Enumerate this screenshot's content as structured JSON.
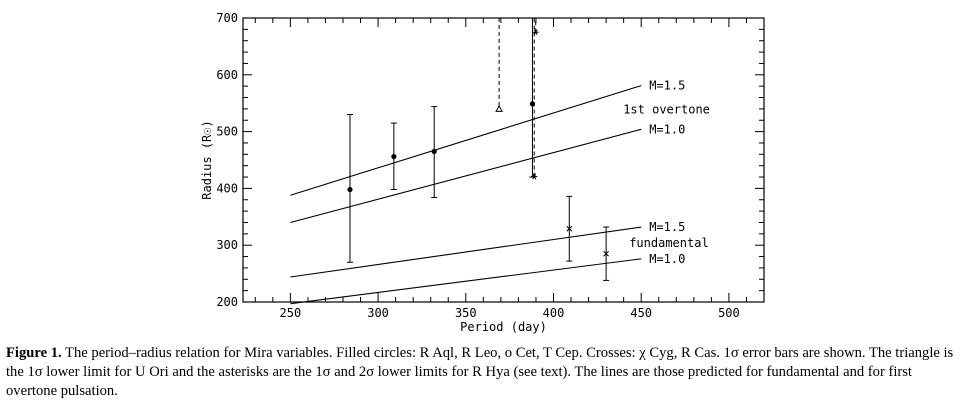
{
  "chart_data": {
    "type": "scatter",
    "xlabel": "Period (day)",
    "ylabel": "Radius (R☉)",
    "xlim": [
      223,
      520
    ],
    "ylim": [
      200,
      700
    ],
    "xticks": [
      250,
      300,
      350,
      400,
      450,
      500
    ],
    "yticks": [
      200,
      300,
      400,
      500,
      600,
      700
    ],
    "grid": false,
    "lines": [
      {
        "label": "M=1.5",
        "x": [
          250,
          450
        ],
        "y": [
          388,
          581
        ]
      },
      {
        "label": "M=1.0",
        "x": [
          250,
          450
        ],
        "y": [
          340,
          504
        ]
      },
      {
        "label": "M=1.5",
        "x": [
          250,
          450
        ],
        "y": [
          244,
          332
        ]
      },
      {
        "label": "M=1.0",
        "x": [
          250,
          450
        ],
        "y": [
          197,
          276
        ]
      }
    ],
    "group_labels": [
      "1st overtone",
      "fundamental"
    ],
    "filled_circles": [
      {
        "x": 284,
        "y": 398,
        "err_low": 270,
        "err_high": 530
      },
      {
        "x": 309,
        "y": 456,
        "err_low": 398,
        "err_high": 515
      },
      {
        "x": 332,
        "y": 465,
        "err_low": 384,
        "err_high": 544
      },
      {
        "x": 388,
        "y": 549,
        "err_low": 420,
        "err_high": 700
      }
    ],
    "crosses": [
      {
        "x": 409,
        "y": 329,
        "err_low": 272,
        "err_high": 386
      },
      {
        "x": 430,
        "y": 285,
        "err_low": 238,
        "err_high": 332
      }
    ],
    "triangle": {
      "x": 369,
      "y": 540,
      "upper": 700
    },
    "asterisks": [
      {
        "x": 389,
        "y": 675,
        "upper": 700
      },
      {
        "x": 389,
        "y": 421,
        "upper": 700
      }
    ]
  },
  "caption": {
    "label": "Figure 1.",
    "text": " The period–radius relation for Mira variables. Filled circles: R Aql, R Leo, o Cet, T Cep. Crosses: χ Cyg, R Cas. 1σ error bars are shown. The triangle is the 1σ lower limit for U Ori and the asterisks are the 1σ and 2σ lower limits for R Hya (see text). The lines are those predicted for fundamental and for first overtone pulsation."
  }
}
